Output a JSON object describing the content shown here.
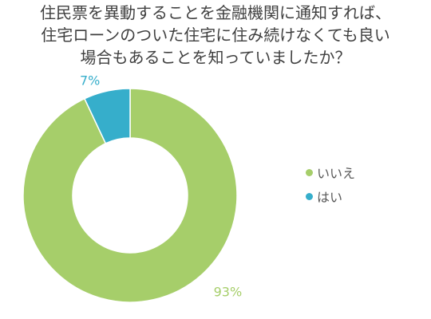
{
  "chart_data": {
    "type": "pie",
    "variant": "donut",
    "title_lines": [
      "住民票を異動することを金融機関に通知すれば、",
      "住宅ローンのついた住宅に住み続けなくても良い",
      "場合もあることを知っていましたか？"
    ],
    "categories": [
      "いいえ",
      "はい"
    ],
    "values": [
      93,
      7
    ],
    "data_labels": [
      "93%",
      "7%"
    ],
    "colors": [
      "#a6ce6a",
      "#36aecb"
    ],
    "legend_position": "right"
  }
}
